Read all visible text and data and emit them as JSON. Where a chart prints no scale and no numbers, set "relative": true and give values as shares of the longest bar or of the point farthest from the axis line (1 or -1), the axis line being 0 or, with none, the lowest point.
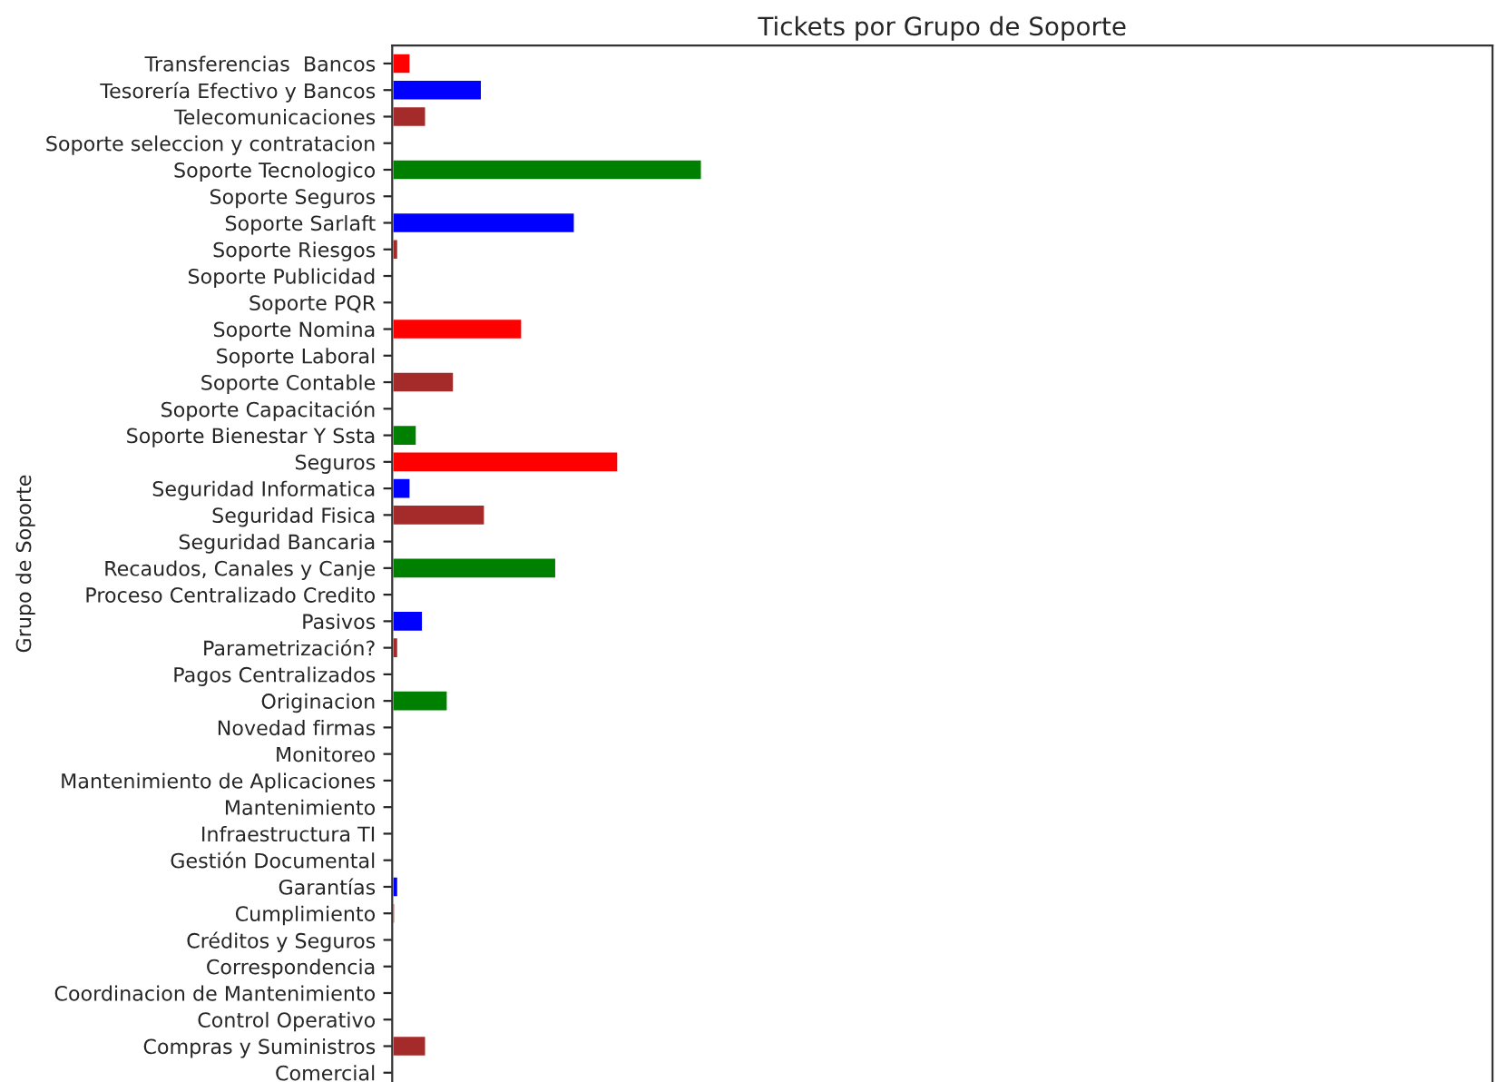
{
  "chart_data": {
    "type": "bar",
    "orientation": "horizontal",
    "relative": true,
    "title": "Tickets por Grupo de Soporte",
    "ylabel": "Grupo de Soporte",
    "categories": [
      "Transferencias  Bancos",
      "Tesorería Efectivo y Bancos",
      "Telecomunicaciones",
      "Soporte seleccion y contratacion",
      "Soporte Tecnologico",
      "Soporte Seguros",
      "Soporte Sarlaft",
      "Soporte Riesgos",
      "Soporte Publicidad",
      "Soporte PQR",
      "Soporte Nomina",
      "Soporte Laboral",
      "Soporte Contable",
      "Soporte Capacitación",
      "Soporte Bienestar Y Ssta",
      "Seguros",
      "Seguridad Informatica",
      "Seguridad Fisica",
      "Seguridad Bancaria",
      "Recaudos, Canales y Canje",
      "Proceso Centralizado Credito",
      "Pasivos",
      "Parametrización?",
      "Pagos Centralizados",
      "Originacion",
      "Novedad firmas",
      "Monitoreo",
      "Mantenimiento de Aplicaciones",
      "Mantenimiento",
      "Infraestructura TI",
      "Gestión Documental",
      "Garantías",
      "Cumplimiento",
      "Créditos y Seguros",
      "Correspondencia",
      "Coordinacion de Mantenimiento",
      "Control Operativo",
      "Compras y Suministros",
      "Comercial"
    ],
    "values": [
      0.06,
      0.29,
      0.11,
      null,
      1,
      null,
      0.59,
      0.02,
      null,
      null,
      0.42,
      null,
      0.2,
      null,
      0.08,
      0.73,
      0.06,
      0.3,
      null,
      0.53,
      null,
      0.1,
      0.02,
      null,
      0.18,
      null,
      null,
      null,
      null,
      null,
      null,
      0.02,
      0.01,
      null,
      null,
      null,
      null,
      0.11,
      null
    ],
    "colors": [
      "#ff0000",
      "#0000ff",
      "#a52a2a",
      null,
      "#008000",
      null,
      "#0000ff",
      "#a52a2a",
      null,
      null,
      "#ff0000",
      null,
      "#a52a2a",
      null,
      "#008000",
      "#ff0000",
      "#0000ff",
      "#a52a2a",
      null,
      "#008000",
      null,
      "#0000ff",
      "#a52a2a",
      null,
      "#008000",
      null,
      null,
      null,
      null,
      null,
      null,
      "#0000ff",
      "#a52a2a",
      null,
      null,
      null,
      null,
      "#a52a2a",
      null
    ],
    "grid": false
  }
}
